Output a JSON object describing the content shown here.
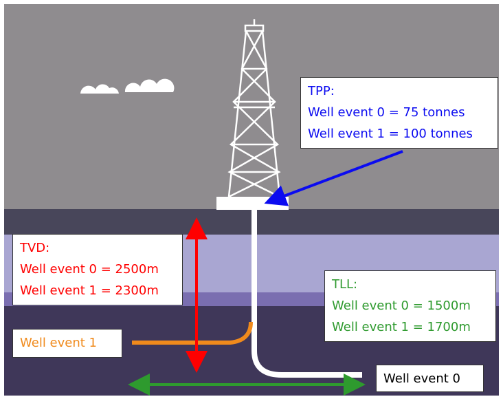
{
  "tpp": {
    "title": "TPP:",
    "lines": [
      "Well event 0 = 75 tonnes",
      "Well event 1 = 100 tonnes"
    ]
  },
  "tvd": {
    "title": "TVD:",
    "lines": [
      "Well event 0 = 2500m",
      "Well event 1 = 2300m"
    ]
  },
  "tll": {
    "title": "TLL:",
    "lines": [
      "Well event 0 = 1500m",
      "Well event 1 = 1700m"
    ]
  },
  "well_labels": [
    "Well event 1",
    "Well event 0"
  ]
}
